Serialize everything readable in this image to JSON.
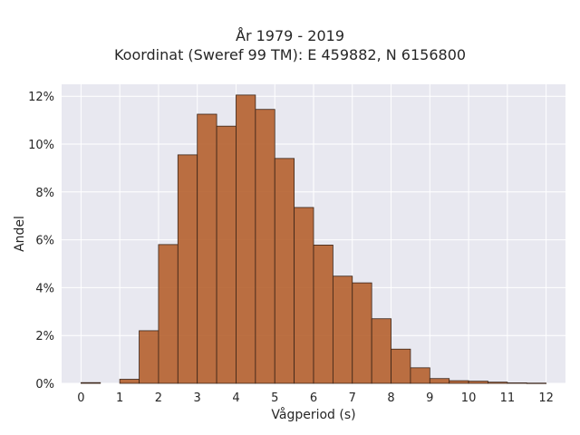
{
  "chart_data": {
    "type": "bar",
    "title": "År 1979 - 2019",
    "subtitle": "Koordinat (Sweref 99 TM): E 459882, N 6156800",
    "xlabel": "Vågperiod (s)",
    "ylabel": "Andel",
    "xlim": [
      -0.5,
      12.5
    ],
    "ylim": [
      0,
      0.125
    ],
    "grid": true,
    "x_ticks": [
      "0",
      "1",
      "2",
      "3",
      "4",
      "5",
      "6",
      "7",
      "8",
      "9",
      "10",
      "11",
      "12"
    ],
    "y_ticks": [
      "0%",
      "2%",
      "4%",
      "6%",
      "8%",
      "10%",
      "12%"
    ],
    "y_tick_values": [
      0,
      0.02,
      0.04,
      0.06,
      0.08,
      0.1,
      0.12
    ],
    "bin_width": 0.5,
    "bin_starts": [
      0,
      1,
      1.5,
      2,
      2.5,
      3,
      3.5,
      4,
      4.5,
      5,
      5.5,
      6,
      6.5,
      7,
      7.5,
      8,
      8.5,
      9,
      9.5,
      10,
      10.5,
      11,
      11.5
    ],
    "values": [
      0.0003,
      0.0017,
      0.022,
      0.058,
      0.0955,
      0.1125,
      0.1075,
      0.1205,
      0.1145,
      0.094,
      0.0735,
      0.0578,
      0.0448,
      0.042,
      0.027,
      0.0143,
      0.0065,
      0.002,
      0.0011,
      0.0009,
      0.0005,
      0.0002,
      0.0001
    ],
    "bar_color": "#b5602e",
    "bar_edge_color": "#3a2418",
    "plot_background": "#e8e8f0",
    "grid_color": "#ffffff"
  }
}
